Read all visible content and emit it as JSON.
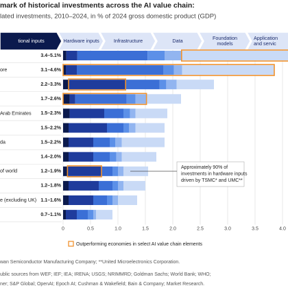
{
  "chart_data": {
    "type": "stacked-bar-horizontal",
    "title": "mark of historical investments across the AI value chain:",
    "subtitle": "lated investments, 2010–2024, in % of 2024 gross domestic product (GDP)",
    "stages": [
      [
        "tional inputs"
      ],
      [
        "Hardware inputs"
      ],
      [
        "Infrastructure"
      ],
      [
        "Data"
      ],
      [
        "Foundation",
        "models"
      ],
      [
        "Application",
        "and servic"
      ]
    ],
    "categories": [
      null,
      "ore",
      null,
      null,
      "Arab Emirates",
      null,
      "da",
      null,
      "of world",
      null,
      "e (excluding UK)",
      null
    ],
    "ranges": [
      "3.4–5.1%",
      "3.1–4.6%",
      "2.2–3.3%",
      "1.7–2.6%",
      "1.5–2.3%",
      "1.5–2.2%",
      "1.5–2.2%",
      "1.4–2.0%",
      "1.2–1.9%",
      "1.2–1.8%",
      "1.1–1.6%",
      "0.7–1.1%"
    ],
    "series": [
      {
        "color": "#0b1a4d",
        "values": [
          0.06,
          0.05,
          0.1,
          0.12,
          0.12,
          0.1,
          0.1,
          0.1,
          0.08,
          0.1,
          0.1,
          0.05
        ]
      },
      {
        "color": "#1f3c9c",
        "values": [
          0.2,
          0.2,
          1.04,
          0.1,
          0.63,
          0.7,
          0.45,
          0.45,
          0.62,
          0.55,
          0.45,
          0.2
        ]
      },
      {
        "color": "#3b6fd6",
        "values": [
          1.28,
          1.58,
          0.62,
          0.94,
          0.35,
          0.3,
          0.3,
          0.3,
          0.2,
          0.25,
          0.25,
          0.2
        ]
      },
      {
        "color": "#5c90e8",
        "values": [
          0.31,
          0.19,
          0.12,
          0.16,
          0.12,
          0.1,
          0.1,
          0.12,
          0.1,
          0.1,
          0.1,
          0.1
        ]
      },
      {
        "color": "#92b5f0",
        "values": [
          0.31,
          0.15,
          0.19,
          0.2,
          0.1,
          0.12,
          0.12,
          0.1,
          0.1,
          0.1,
          0.1,
          0.05
        ]
      },
      {
        "color": "#c9daf6",
        "values": [
          2.09,
          1.68,
          0.68,
          0.63,
          0.58,
          0.53,
          0.78,
          0.63,
          0.45,
          0.4,
          0.35,
          0.3
        ]
      }
    ],
    "highlights": [
      {
        "row": 0,
        "from": 5,
        "to": 5
      },
      {
        "row": 1,
        "from": 0,
        "to": 5
      },
      {
        "row": 2,
        "from": 1,
        "to": 1
      },
      {
        "row": 3,
        "from": 0,
        "to": 4
      },
      {
        "row": 8,
        "from": 1,
        "to": 1
      }
    ],
    "highlight_color": "#f0922e",
    "xlim": [
      0,
      4.1
    ],
    "xticks": [
      0,
      0.5,
      {
        "value": 1,
        "label": "1.0"
      },
      1.5,
      {
        "value": 2,
        "label": "2.0"
      },
      2.5,
      {
        "value": 3,
        "label": "3.0"
      },
      3.5,
      {
        "value": 4,
        "label": "4.0"
      }
    ],
    "grid": true,
    "annotation": {
      "row": 8,
      "lines": [
        "Approximately 90% of",
        "investments in hardware inputs",
        "driven by TSMC* and UMC**"
      ]
    },
    "legend": "Outperforming economies in select AI value chain elements",
    "footnotes": [
      "wan Semiconductor Manufacturing Company; **United Microelectronics Corporation.",
      "ublic sources from WEF; IEF; IEA; IRENA; USGS; NRIMMRD; Goldman Sachs; World Bank; WHO;",
      "ner; S&P Global; OpenAI; Epoch AI; Cushman & Wakefield; Bain & Company; Market Research."
    ]
  }
}
